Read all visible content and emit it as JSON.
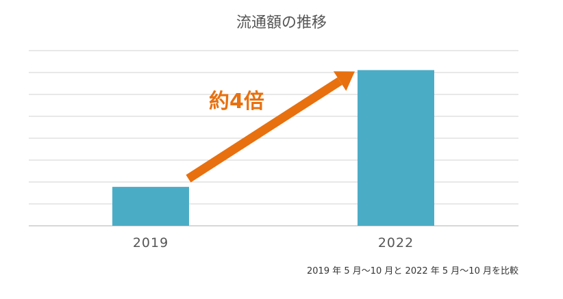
{
  "chart_data": {
    "type": "bar",
    "title": "流通額の推移",
    "categories": [
      "2019",
      "2022"
    ],
    "values": [
      1,
      4
    ],
    "ylim": [
      0,
      4.5
    ],
    "grid": true,
    "bar_color": "#4bacc6",
    "annotation": {
      "text": "約4倍",
      "color": "#e8700f",
      "arrow": "from 2019 bar to 2022 bar"
    },
    "footnote": "2019 年 5 月～10 月と 2022 年 5 月～10 月を比較"
  }
}
